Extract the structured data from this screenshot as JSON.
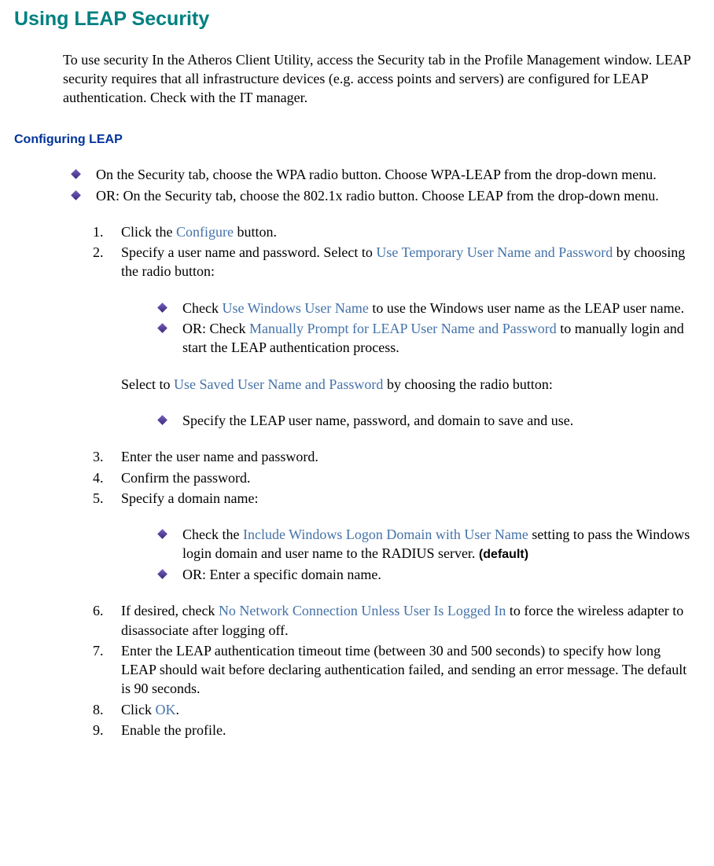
{
  "title": "Using LEAP Security",
  "intro": "To use security In the Atheros Client Utility, access the Security tab in the Profile Management window. LEAP security requires that all infrastructure devices (e.g. access points and servers) are configured for LEAP authentication. Check with the IT manager.",
  "subheading": "Configuring LEAP",
  "bullets_top": [
    "On the Security tab, choose the WPA radio button. Choose WPA-LEAP from the drop-down menu.",
    "OR: On the Security tab, choose the 802.1x radio button. Choose LEAP from the drop-down menu."
  ],
  "steps": {
    "s1_a": "Click the ",
    "s1_link": "Configure",
    "s1_b": " button.",
    "s2_a": "Specify a user name and password.  Select to ",
    "s2_link": "Use Temporary User Name and Password",
    "s2_b": " by choosing the radio button:",
    "s2_sub1_a": "Check ",
    "s2_sub1_link": "Use Windows User Name",
    "s2_sub1_b": " to use the Windows user name as the LEAP user name.",
    "s2_sub2_a": "OR: Check ",
    "s2_sub2_link": "Manually Prompt for LEAP User Name and Password",
    "s2_sub2_b": " to manually login and start the LEAP authentication process.",
    "s2_mid_a": "Select to ",
    "s2_mid_link": "Use Saved User Name and Password",
    "s2_mid_b": " by choosing the radio button:",
    "s2_sub3": "Specify the LEAP user name, password, and domain to save and use.",
    "s3": "Enter the user name and password.",
    "s4": "Confirm the password.",
    "s5": "Specify a domain name:",
    "s5_sub1_a": "Check the ",
    "s5_sub1_link": "Include Windows Logon Domain with User Name",
    "s5_sub1_b": " setting to pass the Windows login domain and user name to the RADIUS server. ",
    "s5_sub1_bold": "(default)",
    "s5_sub2": "OR: Enter a specific domain name.",
    "s6_a": "If desired, check ",
    "s6_link": "No Network Connection Unless User Is Logged In",
    "s6_b": " to force the wireless adapter to disassociate after logging off.",
    "s7": "Enter the LEAP authentication timeout time (between 30 and 500 seconds) to specify how long LEAP should wait before declaring authentication failed, and sending an error message.  The default is 90 seconds.",
    "s8_a": "Click ",
    "s8_link": "OK",
    "s8_b": ".",
    "s9": "Enable the profile."
  }
}
